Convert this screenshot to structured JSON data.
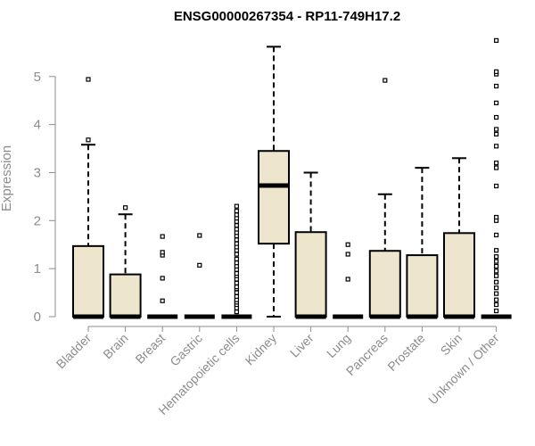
{
  "chart_data": {
    "type": "box",
    "title": "ENSG00000267354 - RP11-749H17.2",
    "xlabel": "",
    "ylabel": "Expression",
    "ylim": [
      0,
      5.85
    ],
    "yticks": [
      0,
      1,
      2,
      3,
      4,
      5
    ],
    "categories": [
      "Bladder",
      "Brain",
      "Breast",
      "Gastric",
      "Hematopoietic cells",
      "Kidney",
      "Liver",
      "Lung",
      "Pancreas",
      "Prostate",
      "Skin",
      "Unknown / Other"
    ],
    "boxes": [
      {
        "category": "Bladder",
        "whisker_low": 0,
        "q1": 0,
        "median": 0,
        "q3": 1.47,
        "whisker_high": 3.58,
        "outliers": [
          3.68,
          4.94
        ]
      },
      {
        "category": "Brain",
        "whisker_low": 0,
        "q1": 0,
        "median": 0,
        "q3": 0.88,
        "whisker_high": 2.13,
        "outliers": [
          2.27
        ]
      },
      {
        "category": "Breast",
        "whisker_low": 0,
        "q1": 0,
        "median": 0,
        "q3": 0,
        "whisker_high": 0,
        "outliers": [
          0.33,
          0.8,
          1.28,
          1.34,
          1.67
        ]
      },
      {
        "category": "Gastric",
        "whisker_low": 0,
        "q1": 0,
        "median": 0,
        "q3": 0,
        "whisker_high": 0,
        "outliers": [
          1.07,
          1.69
        ]
      },
      {
        "category": "Hematopoietic cells",
        "whisker_low": 0,
        "q1": 0,
        "median": 0,
        "q3": 0,
        "whisker_high": 0,
        "outliers": [
          0.1,
          0.18,
          0.25,
          0.3,
          0.35,
          0.42,
          0.5,
          0.58,
          0.62,
          0.7,
          0.78,
          0.85,
          0.9,
          0.98,
          1.05,
          1.12,
          1.2,
          1.3,
          1.38,
          1.45,
          1.52,
          1.6,
          1.68,
          1.75,
          1.82,
          1.9,
          1.98,
          2.05,
          2.12,
          2.2,
          2.3
        ]
      },
      {
        "category": "Kidney",
        "whisker_low": 0,
        "q1": 1.52,
        "median": 2.73,
        "q3": 3.45,
        "whisker_high": 5.62,
        "outliers": []
      },
      {
        "category": "Liver",
        "whisker_low": 0,
        "q1": 0,
        "median": 0,
        "q3": 1.76,
        "whisker_high": 3.0,
        "outliers": []
      },
      {
        "category": "Lung",
        "whisker_low": 0,
        "q1": 0,
        "median": 0,
        "q3": 0,
        "whisker_high": 0,
        "outliers": [
          0.78,
          1.3,
          1.5
        ]
      },
      {
        "category": "Pancreas",
        "whisker_low": 0,
        "q1": 0,
        "median": 0,
        "q3": 1.37,
        "whisker_high": 2.55,
        "outliers": [
          4.92
        ]
      },
      {
        "category": "Prostate",
        "whisker_low": 0,
        "q1": 0,
        "median": 0,
        "q3": 1.28,
        "whisker_high": 3.1,
        "outliers": []
      },
      {
        "category": "Skin",
        "whisker_low": 0,
        "q1": 0,
        "median": 0,
        "q3": 1.74,
        "whisker_high": 3.3,
        "outliers": []
      },
      {
        "category": "Unknown / Other",
        "whisker_low": 0,
        "q1": 0,
        "median": 0,
        "q3": 0,
        "whisker_high": 0,
        "outliers": [
          0.12,
          0.25,
          0.35,
          0.48,
          0.6,
          0.72,
          0.85,
          0.95,
          1.05,
          1.15,
          1.25,
          1.38,
          1.7,
          2.0,
          2.07,
          2.72,
          3.1,
          3.2,
          3.55,
          3.8,
          3.9,
          4.15,
          4.45,
          4.8,
          5.05,
          5.1,
          5.75
        ]
      }
    ],
    "grid": false,
    "legend": "none",
    "colors": {
      "box_fill": "#ede6cd",
      "box_stroke": "#000000",
      "axis": "#8c8c8c",
      "text": "#8c8c8c",
      "title": "#000000"
    }
  }
}
